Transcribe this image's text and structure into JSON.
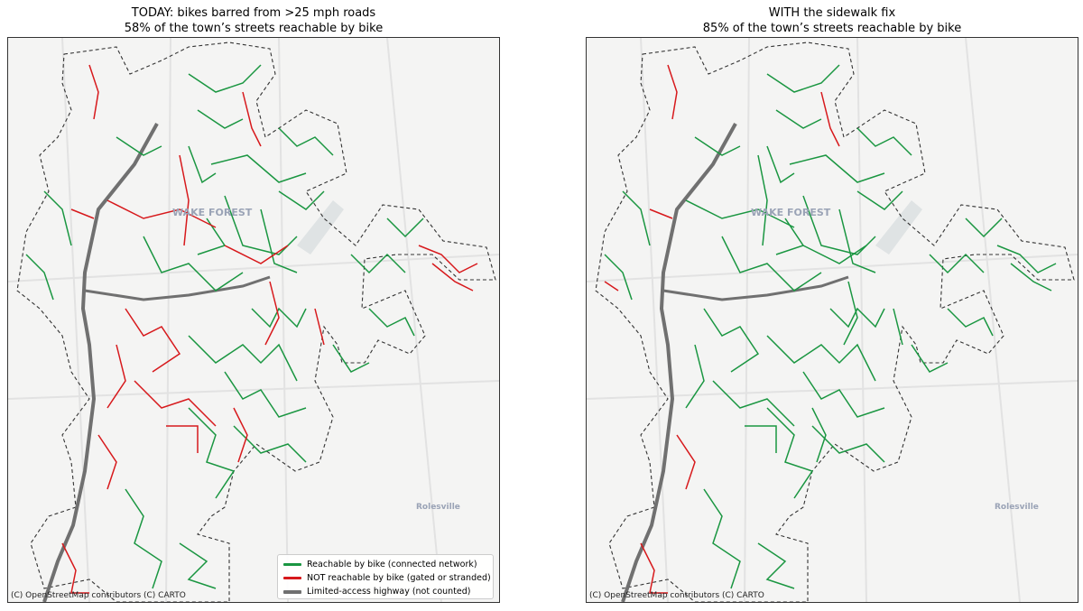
{
  "left_panel": {
    "title_line1": "TODAY: bikes barred from >25 mph roads",
    "title_line2": "58% of the town’s streets reachable by bike",
    "percent_reachable": 58,
    "attribution": "(C) OpenStreetMap contributors (C) CARTO",
    "place_labels": {
      "main": "WAKE FOREST",
      "east": "Rolesville"
    }
  },
  "right_panel": {
    "title_line1": "WITH the sidewalk fix",
    "title_line2": "85% of the town’s streets reachable by bike",
    "percent_reachable": 85,
    "attribution": "(C) OpenStreetMap contributors (C) CARTO",
    "place_labels": {
      "main": "WAKE FOREST",
      "east": "Rolesville"
    }
  },
  "legend": {
    "items": [
      {
        "label": "Reachable by bike (connected network)",
        "color": "#1a9641"
      },
      {
        "label": "NOT reachable by bike (gated or stranded)",
        "color": "#d7191c"
      },
      {
        "label": "Limited-access highway (not counted)",
        "color": "#707070"
      }
    ]
  },
  "colors": {
    "reachable": "#1a9641",
    "not_reachable": "#d7191c",
    "highway": "#707070",
    "boundary": "#333333",
    "basemap": "#f4f4f3"
  }
}
